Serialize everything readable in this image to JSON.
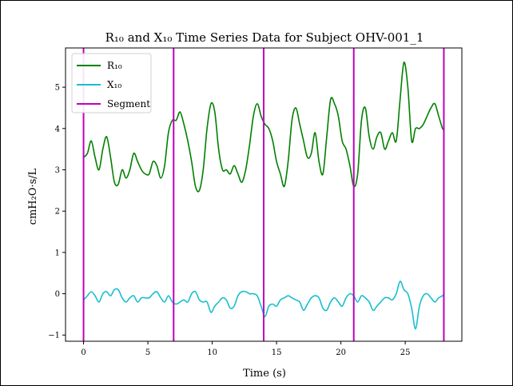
{
  "chart_data": {
    "type": "line",
    "title": "R₁₀ and X₁₀ Time Series Data for Subject OHV-001_1",
    "xlabel": "Time (s)",
    "ylabel": "cmH₂O·s/L",
    "xlim": [
      -1.4,
      29.4
    ],
    "ylim": [
      -1.15,
      5.95
    ],
    "xticks": [
      0,
      5,
      10,
      15,
      20,
      25
    ],
    "yticks": [
      -1,
      0,
      1,
      2,
      3,
      4,
      5
    ],
    "grid": false,
    "legend_position": "top-left",
    "segments": [
      0,
      7,
      14,
      21,
      28
    ],
    "series": [
      {
        "name": "R₁₀",
        "color": "#008000",
        "x": [
          0,
          0.3,
          0.6,
          0.9,
          1.2,
          1.5,
          1.8,
          2.1,
          2.4,
          2.7,
          3,
          3.3,
          3.6,
          3.9,
          4.2,
          4.5,
          4.8,
          5.1,
          5.4,
          5.7,
          6,
          6.3,
          6.6,
          6.9,
          7.2,
          7.5,
          7.8,
          8.1,
          8.4,
          8.7,
          9,
          9.3,
          9.6,
          9.9,
          10.2,
          10.5,
          10.8,
          11.1,
          11.4,
          11.7,
          12,
          12.3,
          12.6,
          12.9,
          13.2,
          13.5,
          13.8,
          14.1,
          14.4,
          14.7,
          15,
          15.3,
          15.6,
          15.9,
          16.2,
          16.5,
          16.8,
          17.1,
          17.4,
          17.7,
          18,
          18.3,
          18.6,
          18.9,
          19.2,
          19.5,
          19.8,
          20.1,
          20.4,
          20.7,
          21,
          21.3,
          21.6,
          21.9,
          22.2,
          22.5,
          22.8,
          23.1,
          23.4,
          23.7,
          24,
          24.3,
          24.6,
          24.9,
          25.2,
          25.5,
          25.8,
          26.1,
          26.4,
          26.7,
          27,
          27.3,
          27.6,
          27.9,
          28
        ],
        "y": [
          3.3,
          3.4,
          3.7,
          3.3,
          3.0,
          3.5,
          3.8,
          3.3,
          2.7,
          2.65,
          3.0,
          2.8,
          3.0,
          3.4,
          3.2,
          3.0,
          2.9,
          2.9,
          3.2,
          3.1,
          2.8,
          3.1,
          3.9,
          4.2,
          4.2,
          4.4,
          4.1,
          3.7,
          3.2,
          2.6,
          2.5,
          3.0,
          4.0,
          4.6,
          4.4,
          3.5,
          3.0,
          3.0,
          2.9,
          3.1,
          2.9,
          2.7,
          3.0,
          3.6,
          4.3,
          4.6,
          4.3,
          4.1,
          4.0,
          3.7,
          3.2,
          2.9,
          2.6,
          3.2,
          4.2,
          4.5,
          4.1,
          3.7,
          3.3,
          3.4,
          3.9,
          3.2,
          2.9,
          3.8,
          4.7,
          4.6,
          4.3,
          3.7,
          3.5,
          3.1,
          2.6,
          2.9,
          4.2,
          4.5,
          3.8,
          3.5,
          3.8,
          3.9,
          3.5,
          3.7,
          3.9,
          3.7,
          4.7,
          5.6,
          5.0,
          3.7,
          4.0,
          4.0,
          4.1,
          4.3,
          4.5,
          4.6,
          4.3,
          4.0,
          4.0
        ]
      },
      {
        "name": "X₁₀",
        "color": "#17becf",
        "x": [
          0,
          0.3,
          0.6,
          0.9,
          1.2,
          1.5,
          1.8,
          2.1,
          2.4,
          2.7,
          3,
          3.3,
          3.6,
          3.9,
          4.2,
          4.5,
          4.8,
          5.1,
          5.4,
          5.7,
          6,
          6.3,
          6.6,
          6.9,
          7.2,
          7.5,
          7.8,
          8.1,
          8.4,
          8.7,
          9,
          9.3,
          9.6,
          9.9,
          10.2,
          10.5,
          10.8,
          11.1,
          11.4,
          11.7,
          12,
          12.3,
          12.6,
          12.9,
          13.2,
          13.5,
          13.8,
          14.1,
          14.4,
          14.7,
          15,
          15.3,
          15.6,
          15.9,
          16.2,
          16.5,
          16.8,
          17.1,
          17.4,
          17.7,
          18,
          18.3,
          18.6,
          18.9,
          19.2,
          19.5,
          19.8,
          20.1,
          20.4,
          20.7,
          21,
          21.3,
          21.6,
          21.9,
          22.2,
          22.5,
          22.8,
          23.1,
          23.4,
          23.7,
          24,
          24.3,
          24.6,
          24.9,
          25.2,
          25.5,
          25.8,
          26.1,
          26.4,
          26.7,
          27,
          27.3,
          27.6,
          27.9,
          28
        ],
        "y": [
          -0.15,
          -0.05,
          0.05,
          -0.05,
          -0.2,
          0.0,
          0.05,
          -0.05,
          0.1,
          0.1,
          -0.1,
          -0.2,
          -0.1,
          -0.05,
          -0.2,
          -0.1,
          -0.1,
          -0.1,
          0.0,
          0.05,
          -0.1,
          -0.2,
          -0.05,
          -0.2,
          -0.25,
          -0.2,
          -0.15,
          -0.2,
          0.0,
          0.05,
          -0.15,
          -0.2,
          -0.2,
          -0.45,
          -0.3,
          -0.2,
          -0.1,
          -0.15,
          -0.35,
          -0.3,
          -0.05,
          0.05,
          0.05,
          0.0,
          0.0,
          -0.05,
          -0.3,
          -0.55,
          -0.3,
          -0.25,
          -0.3,
          -0.15,
          -0.1,
          -0.05,
          -0.1,
          -0.15,
          -0.2,
          -0.4,
          -0.25,
          -0.1,
          -0.05,
          -0.1,
          -0.35,
          -0.4,
          -0.2,
          -0.1,
          -0.2,
          -0.3,
          -0.1,
          0.0,
          -0.05,
          -0.2,
          -0.05,
          -0.1,
          -0.2,
          -0.4,
          -0.3,
          -0.2,
          -0.1,
          -0.1,
          -0.15,
          0.0,
          0.3,
          0.1,
          0.0,
          -0.35,
          -0.85,
          -0.3,
          -0.05,
          0.0,
          -0.1,
          -0.2,
          -0.1,
          -0.05,
          0.0
        ]
      },
      {
        "name": "Segment",
        "color": "#bf00bf"
      }
    ]
  }
}
